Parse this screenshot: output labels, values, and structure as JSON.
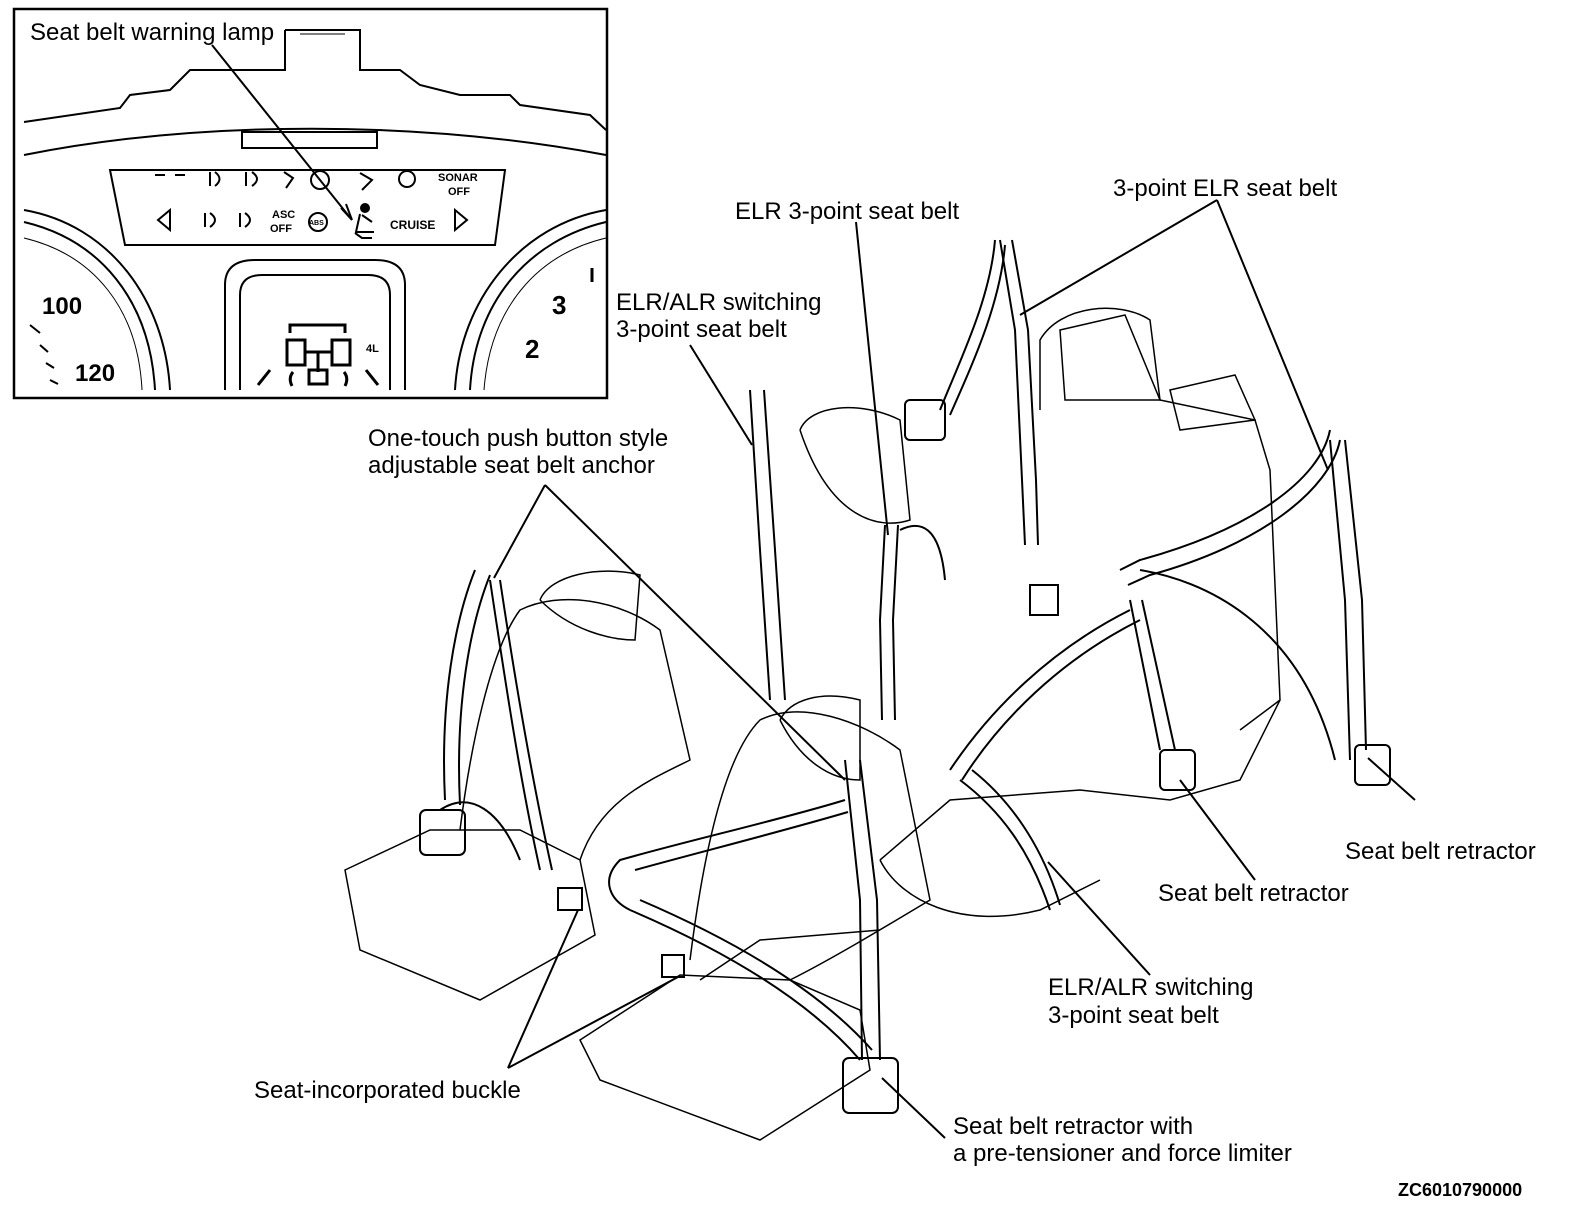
{
  "callouts": {
    "warning_lamp": "Seat belt warning lamp",
    "elr_3point": "ELR 3-point seat belt",
    "three_point_elr": "3-point ELR seat belt",
    "elr_alr_rear_1": "ELR/ALR switching",
    "elr_alr_rear_2": "3-point seat belt",
    "anchor_1": "One-touch push button style",
    "anchor_2": "adjustable seat belt anchor",
    "retractor_right": "Seat belt retractor",
    "retractor_middle": "Seat belt retractor",
    "elr_alr_front_1": "ELR/ALR switching",
    "elr_alr_front_2": "3-point seat belt",
    "buckle": "Seat-incorporated buckle",
    "pretensioner_1": "Seat belt retractor with",
    "pretensioner_2": "a pre-tensioner and force limiter"
  },
  "figure_code": "ZC6010790000",
  "cluster": {
    "speed_100": "100",
    "speed_120": "120",
    "rpm_3": "3",
    "rpm_2": "2",
    "drive_4l": "4L",
    "sonar_1": "SONAR",
    "sonar_2": "OFF",
    "asc_1": "ASC",
    "asc_2": "OFF",
    "cruise": "CRUISE",
    "abs": "ABS"
  }
}
